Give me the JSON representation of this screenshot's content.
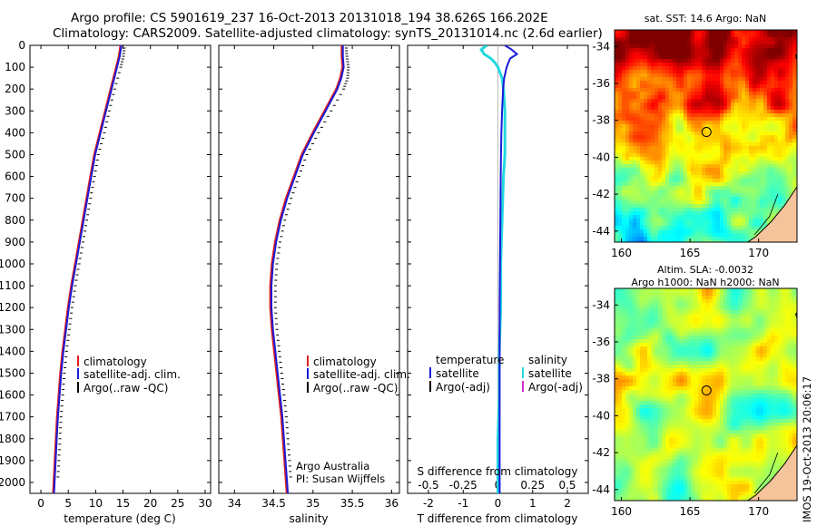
{
  "header": {
    "line1": "Argo profile: CS 5901619_237 16-Oct-2013 20131018_194 38.626S 166.202E",
    "line2": "Climatology: CARS2009. Satellite-adjusted climatology: synTS_20131014.nc (2.6d earlier)"
  },
  "colors": {
    "climatology": "#e02020",
    "satellite": "#1a1ad8",
    "argo": "#000000",
    "sal_satellite": "#22d8e0",
    "sal_argo": "#d030d0"
  },
  "chart_data": [
    {
      "type": "line",
      "id": "temperature",
      "xlabel": "temperature (deg C)",
      "xlim": [
        -2,
        31
      ],
      "xticks": [
        "0",
        "5",
        "10",
        "15",
        "20",
        "25",
        "30"
      ],
      "ylim": [
        0,
        2050
      ],
      "yticks": [
        "0",
        "100",
        "200",
        "300",
        "400",
        "500",
        "600",
        "700",
        "800",
        "900",
        "1000",
        "1100",
        "1200",
        "1300",
        "1400",
        "1500",
        "1600",
        "1700",
        "1800",
        "1900",
        "2000"
      ],
      "legend": [
        "climatology",
        "satellite-adj. clim.",
        "Argo(..raw -QC)"
      ],
      "series": [
        {
          "name": "climatology",
          "depth": [
            0,
            50,
            100,
            200,
            300,
            400,
            500,
            600,
            700,
            800,
            900,
            1000,
            1100,
            1200,
            1300,
            1400,
            1500,
            1600,
            1700,
            1800,
            1900,
            2000,
            2050
          ],
          "values": [
            14.6,
            14.3,
            13.8,
            12.8,
            11.8,
            10.8,
            9.8,
            9.1,
            8.4,
            7.7,
            7.0,
            6.3,
            5.6,
            5.0,
            4.5,
            4.0,
            3.6,
            3.3,
            3.0,
            2.8,
            2.6,
            2.4,
            2.3
          ]
        },
        {
          "name": "satellite-adj. clim.",
          "depth": [
            0,
            50,
            100,
            200,
            300,
            400,
            500,
            600,
            700,
            800,
            900,
            1000,
            1100,
            1200,
            1300,
            1400,
            1500,
            1600,
            1700,
            1800,
            1900,
            2000,
            2050
          ],
          "values": [
            14.7,
            14.4,
            13.9,
            12.9,
            11.9,
            10.9,
            9.9,
            9.2,
            8.5,
            7.8,
            7.1,
            6.4,
            5.7,
            5.1,
            4.6,
            4.1,
            3.7,
            3.4,
            3.1,
            2.9,
            2.7,
            2.5,
            2.4
          ]
        },
        {
          "name": "Argo(..raw -QC)",
          "depth": [
            0,
            50,
            100,
            200,
            300,
            400,
            500,
            600,
            700,
            800,
            900,
            1000,
            1100,
            1200,
            1300,
            1400,
            1500,
            1600,
            1700,
            1800,
            1900,
            2000
          ],
          "values": [
            14.7,
            14.5,
            14.0,
            12.9,
            11.9,
            11.0,
            9.9,
            9.2,
            8.5,
            7.8,
            7.1,
            6.4,
            5.7,
            5.1,
            4.6,
            4.1,
            3.7,
            3.4,
            3.1,
            2.9,
            2.7,
            2.5
          ]
        }
      ]
    },
    {
      "type": "line",
      "id": "salinity",
      "xlabel": "salinity",
      "xlim": [
        33.8,
        36.1
      ],
      "xticks": [
        "34",
        "34.5",
        "35",
        "35.5",
        "36"
      ],
      "ylim": [
        0,
        2050
      ],
      "legend": [
        "climatology",
        "satellite-adj. clim.",
        "Argo(..raw -QC)"
      ],
      "annotation": [
        "Argo Australia",
        "PI: Susan Wijffels"
      ],
      "series": [
        {
          "name": "climatology",
          "depth": [
            0,
            50,
            100,
            150,
            200,
            300,
            400,
            500,
            600,
            700,
            800,
            900,
            1000,
            1100,
            1200,
            1300,
            1400,
            1500,
            1600,
            1700,
            1800,
            1900,
            2000,
            2050
          ],
          "values": [
            35.37,
            35.37,
            35.38,
            35.35,
            35.3,
            35.15,
            35.0,
            34.86,
            34.76,
            34.66,
            34.58,
            34.52,
            34.48,
            34.46,
            34.46,
            34.48,
            34.51,
            34.54,
            34.57,
            34.6,
            34.62,
            34.64,
            34.66,
            34.67
          ]
        },
        {
          "name": "satellite-adj. clim.",
          "depth": [
            0,
            50,
            100,
            150,
            200,
            300,
            400,
            500,
            600,
            700,
            800,
            900,
            1000,
            1100,
            1200,
            1300,
            1400,
            1500,
            1600,
            1700,
            1800,
            1900,
            2000,
            2050
          ],
          "values": [
            35.38,
            35.38,
            35.39,
            35.36,
            35.31,
            35.16,
            35.01,
            34.87,
            34.77,
            34.67,
            34.59,
            34.53,
            34.49,
            34.47,
            34.47,
            34.49,
            34.52,
            34.55,
            34.58,
            34.61,
            34.63,
            34.65,
            34.67,
            34.68
          ]
        },
        {
          "name": "Argo(..raw -QC)",
          "depth": [
            0,
            50,
            100,
            150,
            200,
            300,
            400,
            500,
            600,
            700,
            800,
            900,
            1000,
            1100,
            1200,
            1300,
            1400,
            1500,
            1600,
            1700,
            1800,
            1900,
            2000
          ],
          "values": [
            35.38,
            35.39,
            35.41,
            35.4,
            35.35,
            35.19,
            35.03,
            34.88,
            34.78,
            34.68,
            34.6,
            34.54,
            34.5,
            34.48,
            34.48,
            34.5,
            34.53,
            34.56,
            34.59,
            34.62,
            34.64,
            34.66,
            34.68
          ]
        }
      ]
    },
    {
      "type": "line",
      "id": "difference",
      "xlabel": "T difference from climatology",
      "xlabel_top": "S difference from climatology",
      "xlim": [
        -2.6,
        2.6
      ],
      "xticks": [
        "-2",
        "-1",
        "0",
        "1",
        "2"
      ],
      "s_xticks": [
        "-0.5",
        "-0.25",
        "0",
        "0.25",
        "0.5"
      ],
      "legend_temperature": [
        "temperature",
        "satellite",
        "Argo(-adj)"
      ],
      "legend_salinity": [
        "salinity",
        "satellite",
        "Argo(-adj)"
      ],
      "series": [
        {
          "name": "satellite",
          "depth": [
            0,
            20,
            40,
            60,
            80,
            100,
            150,
            200,
            300,
            400,
            500,
            600,
            800,
            1000,
            1200,
            1400,
            1600,
            1800,
            2000,
            2050
          ],
          "values": [
            0.2,
            0.4,
            0.55,
            0.35,
            0.3,
            0.25,
            0.18,
            0.15,
            0.12,
            0.1,
            0.09,
            0.08,
            0.07,
            0.06,
            0.05,
            0.05,
            0.05,
            0.05,
            0.05,
            0.05
          ]
        },
        {
          "name": "satellite",
          "depth": [
            0,
            20,
            40,
            60,
            80,
            100,
            150,
            200,
            300,
            400,
            500,
            600,
            800,
            1000,
            1200,
            1400,
            1600,
            1800,
            2000,
            2050
          ],
          "values": [
            -0.08,
            -0.12,
            -0.1,
            -0.05,
            -0.02,
            0.0,
            0.03,
            0.04,
            0.05,
            0.05,
            0.05,
            0.04,
            0.03,
            0.02,
            0.02,
            0.01,
            0.01,
            0.0,
            0.0,
            0.0
          ]
        }
      ]
    },
    {
      "type": "heatmap",
      "id": "sst-map",
      "title": "sat. SST: 14.6 Argo: NaN",
      "xticks": [
        "160",
        "165",
        "170"
      ],
      "yticks": [
        "-34",
        "-36",
        "-38",
        "-40",
        "-42",
        "-44"
      ],
      "xlim": [
        159.5,
        172.8
      ],
      "ylim": [
        -44.6,
        -33.1
      ]
    },
    {
      "type": "heatmap",
      "id": "sla-map",
      "title": [
        "Altim. SLA: -0.0032",
        "Argo h1000: NaN h2000: NaN"
      ],
      "xticks": [
        "160",
        "165",
        "170"
      ],
      "yticks": [
        "-34",
        "-36",
        "-38",
        "-40",
        "-42",
        "-44"
      ],
      "xlim": [
        159.5,
        172.8
      ],
      "ylim": [
        -44.6,
        -33.1
      ]
    }
  ],
  "float_position": {
    "lon": 166.2,
    "lat": -38.63
  },
  "footer": {
    "imos_stamp": "IMOS 19-Oct-2013 20:06:17"
  }
}
